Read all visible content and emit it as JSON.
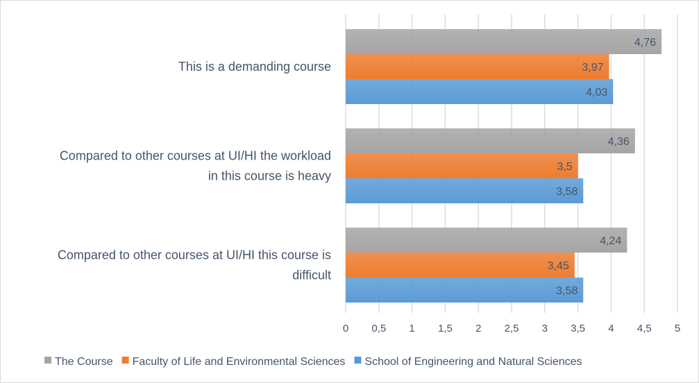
{
  "chart_data": {
    "type": "bar",
    "orientation": "horizontal",
    "categories": [
      "This is a demanding course",
      "Compared to other courses at UI/HI the workload in this course is heavy",
      "Compared to other courses at UI/HI this course is difficult"
    ],
    "category_lines": [
      [
        "This is a demanding course"
      ],
      [
        "Compared to other courses at UI/HI the workload",
        "in this course is heavy"
      ],
      [
        "Compared to other courses at UI/HI this course is",
        "difficult"
      ]
    ],
    "series": [
      {
        "name": "The Course",
        "color": "#a5a5a5",
        "values": [
          4.76,
          4.36,
          4.24
        ],
        "labels": [
          "4,76",
          "4,36",
          "4,24"
        ]
      },
      {
        "name": "Faculty of Life and Environmental Sciences",
        "color": "#ed7d31",
        "values": [
          3.97,
          3.5,
          3.45
        ],
        "labels": [
          "3,97",
          "3,5",
          "3,45"
        ]
      },
      {
        "name": "School of Engineering and Natural Sciences",
        "color": "#5b9bd5",
        "values": [
          4.03,
          3.58,
          3.58
        ],
        "labels": [
          "4,03",
          "3,58",
          "3,58"
        ]
      }
    ],
    "xlim": [
      0,
      5
    ],
    "xticks": [
      "0",
      "0,5",
      "1",
      "1,5",
      "2",
      "2,5",
      "3",
      "3,5",
      "4",
      "4,5",
      "5"
    ],
    "grid": "vertical",
    "legend": "bottom",
    "title": "",
    "xlabel": "",
    "ylabel": ""
  }
}
